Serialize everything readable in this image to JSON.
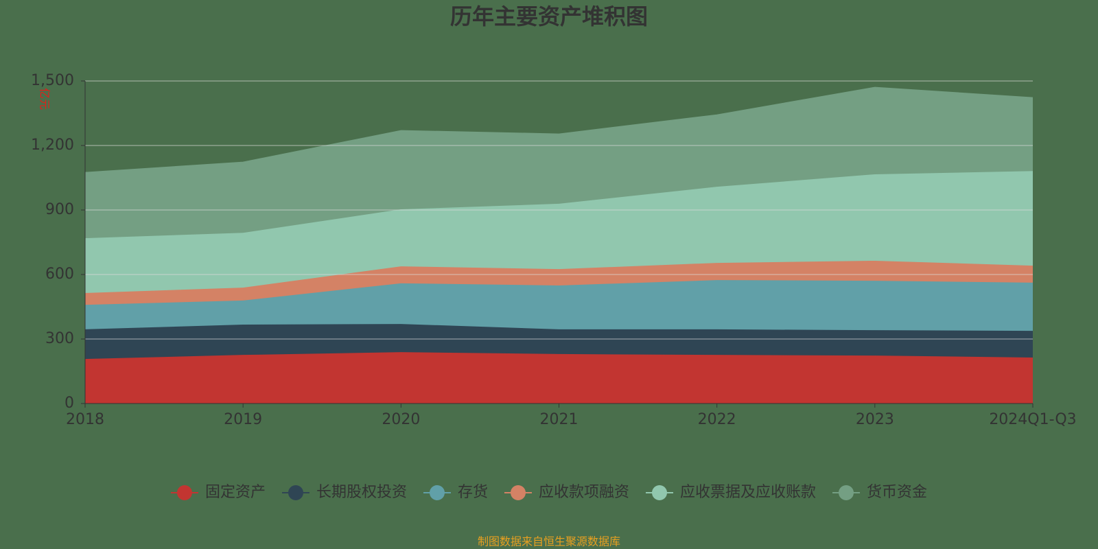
{
  "chart_data": {
    "type": "stacked_area",
    "title": "历年主要资产堆积图",
    "y_label": "亿元",
    "source": "制图数据来自恒生聚源数据库",
    "categories": [
      "2018",
      "2019",
      "2020",
      "2021",
      "2022",
      "2023",
      "2024Q1-Q3"
    ],
    "series": [
      {
        "name": "固定资产",
        "color": "#c23531",
        "values": [
          207,
          226,
          239,
          230,
          226,
          223,
          214
        ]
      },
      {
        "name": "长期股权投资",
        "color": "#2f4554",
        "values": [
          138,
          141,
          131,
          115,
          119,
          118,
          124
        ]
      },
      {
        "name": "存货",
        "color": "#61a0a8",
        "values": [
          114,
          112,
          189,
          204,
          229,
          230,
          224
        ]
      },
      {
        "name": "应收款项融资",
        "color": "#d48265",
        "values": [
          55,
          60,
          79,
          76,
          80,
          93,
          79
        ]
      },
      {
        "name": "应收票据及应收账款",
        "color": "#91c7ae",
        "values": [
          255,
          255,
          265,
          304,
          354,
          402,
          440
        ]
      },
      {
        "name": "货币资金",
        "color": "#749f83",
        "values": [
          306,
          329,
          367,
          325,
          335,
          405,
          342
        ]
      }
    ],
    "ylim": [
      0,
      1500
    ],
    "yticks": [
      0,
      300,
      600,
      900,
      {
        "value": 1200,
        "label": "1,200"
      },
      {
        "value": 1500,
        "label": "1,500"
      }
    ],
    "grid": true
  }
}
